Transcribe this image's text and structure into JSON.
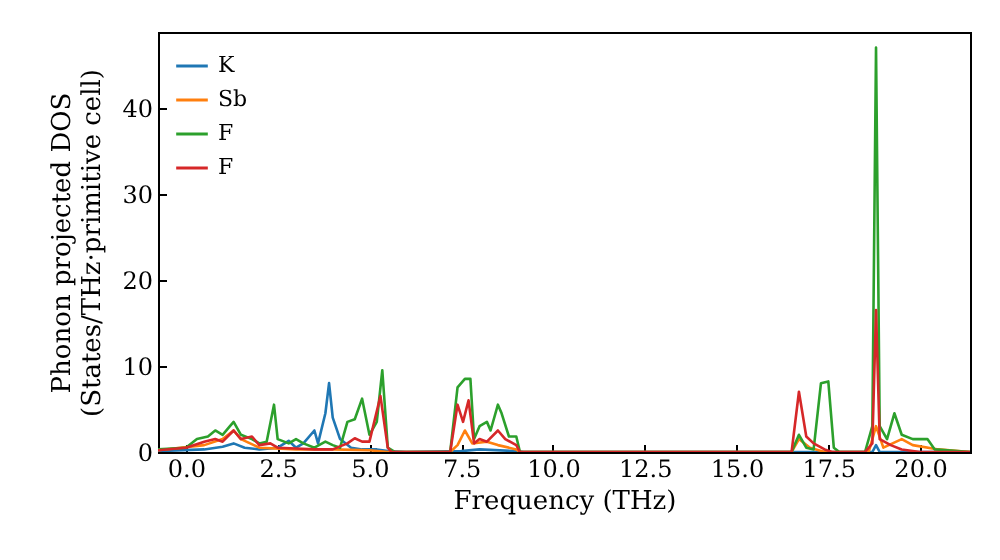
{
  "chart_data": {
    "type": "line",
    "xlabel": "Frequency (THz)",
    "ylabel": "Phonon projected DOS\n(States/THz·primitive cell)",
    "xlim": [
      -0.76,
      21.36
    ],
    "ylim": [
      0,
      48.8
    ],
    "xticks": [
      {
        "value": 0,
        "label": "0.0"
      },
      {
        "value": 2.5,
        "label": "2.5"
      },
      {
        "value": 5,
        "label": "5.0"
      },
      {
        "value": 7.5,
        "label": "7.5"
      },
      {
        "value": 10,
        "label": "10.0"
      },
      {
        "value": 12.5,
        "label": "12.5"
      },
      {
        "value": 15,
        "label": "15.0"
      },
      {
        "value": 17.5,
        "label": "17.5"
      },
      {
        "value": 20,
        "label": "20.0"
      }
    ],
    "yticks": [
      0,
      10,
      20,
      30,
      40
    ],
    "grid": false,
    "legend": "top left",
    "marker": "none",
    "line_style": "solid",
    "series": [
      {
        "name": "K",
        "color": "#1f77b4",
        "x": [
          -0.76,
          0.5,
          1.0,
          1.3,
          1.6,
          2.0,
          2.5,
          2.8,
          3.0,
          3.2,
          3.5,
          3.6,
          3.8,
          3.9,
          4.0,
          4.2,
          4.5,
          4.8,
          5.2,
          5.5,
          6.0,
          7.5,
          8.0,
          9.0,
          9.2,
          18.7,
          18.8,
          18.9,
          21.36
        ],
        "values": [
          0.1,
          0.3,
          0.6,
          1.0,
          0.5,
          0.3,
          0.5,
          1.3,
          0.5,
          1.0,
          2.5,
          1.0,
          4.5,
          8,
          4,
          1.5,
          0.5,
          0.3,
          0.3,
          0.1,
          0,
          0.1,
          0.3,
          0.1,
          0,
          0,
          0.8,
          0,
          0
        ]
      },
      {
        "name": "Sb",
        "color": "#ff7f0e",
        "x": [
          -0.76,
          0.5,
          1.0,
          1.3,
          1.5,
          2.0,
          3.0,
          4.0,
          5.0,
          5.5,
          7.2,
          7.4,
          7.6,
          7.8,
          8.2,
          8.5,
          9.0,
          9.1,
          16.5,
          16.7,
          17.0,
          17.4,
          18.6,
          18.8,
          19.0,
          19.5,
          19.8,
          20.5,
          21.36
        ],
        "values": [
          0.2,
          0.8,
          1.5,
          2.5,
          1.5,
          0.5,
          0.3,
          0.3,
          0.2,
          0,
          0,
          0.8,
          2.5,
          1.0,
          1.2,
          0.8,
          0.3,
          0,
          0,
          1.5,
          0.5,
          0,
          0,
          3,
          0.5,
          1.5,
          0.8,
          0.3,
          0
        ]
      },
      {
        "name": "F",
        "color": "#2ca02c",
        "x": [
          -0.76,
          0,
          0.3,
          0.6,
          0.8,
          1.0,
          1.2,
          1.3,
          1.5,
          1.8,
          2.0,
          2.2,
          2.4,
          2.5,
          2.8,
          3.0,
          3.2,
          3.5,
          3.8,
          4.0,
          4.2,
          4.4,
          4.6,
          4.8,
          5.0,
          5.2,
          5.35,
          5.5,
          5.7,
          7.2,
          7.4,
          7.6,
          7.75,
          7.85,
          8.0,
          8.2,
          8.3,
          8.5,
          8.6,
          8.8,
          9.0,
          9.1,
          16.5,
          16.7,
          16.9,
          17.1,
          17.3,
          17.5,
          17.65,
          17.8,
          18.5,
          18.7,
          18.8,
          18.9,
          19.1,
          19.3,
          19.5,
          19.8,
          20.2,
          20.4,
          21.36
        ],
        "values": [
          0.3,
          0.5,
          1.5,
          1.8,
          2.5,
          2,
          3,
          3.5,
          2,
          1.5,
          1,
          1.2,
          5.5,
          1.5,
          1.0,
          1.5,
          1,
          0.5,
          1.2,
          0.8,
          0.5,
          3.5,
          3.8,
          6.2,
          2.0,
          3.5,
          9.5,
          0.5,
          0,
          0,
          7.5,
          8.5,
          8.5,
          1.5,
          3.0,
          3.5,
          2.5,
          5.5,
          4.5,
          1.8,
          1.8,
          0,
          0,
          2,
          0.5,
          0.3,
          8,
          8.2,
          0.5,
          0,
          0,
          3,
          47,
          3,
          1.5,
          4.5,
          2,
          1.5,
          1.5,
          0.3,
          0
        ]
      },
      {
        "name": "F",
        "color": "#d62728",
        "x": [
          -0.76,
          0,
          0.5,
          0.8,
          1.0,
          1.3,
          1.5,
          1.8,
          2.0,
          2.3,
          2.5,
          3.0,
          3.5,
          4.0,
          4.4,
          4.6,
          4.8,
          5.0,
          5.3,
          5.5,
          5.6,
          7.2,
          7.4,
          7.55,
          7.7,
          7.85,
          8.0,
          8.2,
          8.5,
          8.7,
          9.0,
          9.1,
          16.5,
          16.7,
          16.9,
          17.1,
          17.4,
          17.6,
          18.5,
          18.7,
          18.8,
          18.9,
          19.2,
          19.5,
          20.0,
          21.36
        ],
        "values": [
          0.2,
          0.5,
          1.2,
          1.5,
          1.2,
          2.5,
          1.5,
          1.8,
          0.8,
          1.0,
          0.5,
          0.4,
          0.3,
          0.3,
          1.0,
          1.6,
          1.2,
          1.2,
          6.5,
          0.5,
          0,
          0,
          5.5,
          3.5,
          6,
          1,
          1.5,
          1.2,
          2.5,
          1.5,
          0.8,
          0,
          0,
          7,
          1.8,
          1,
          0.3,
          0,
          0,
          1,
          16.5,
          1.5,
          0.8,
          0.3,
          0,
          0
        ]
      }
    ]
  }
}
